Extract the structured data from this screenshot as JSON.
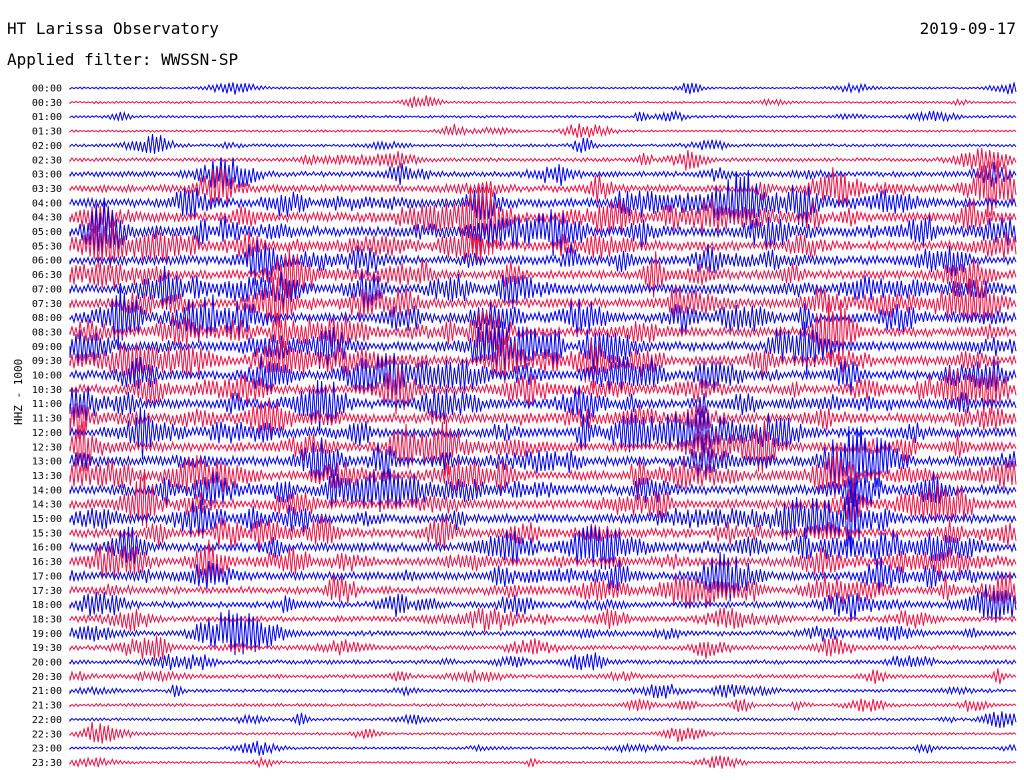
{
  "header": {
    "title": "HT Larissa Observatory",
    "date": "2019-09-17",
    "filter": "Applied filter: WWSSN-SP"
  },
  "channel_label": "HHZ - 1000",
  "colors": {
    "trace_a": "#0000ee",
    "trace_b": "#ee1144"
  },
  "chart_data": {
    "type": "line",
    "title": "HT Larissa Observatory",
    "ylabel": "HHZ - 1000",
    "categories": [
      "00:00",
      "00:30",
      "01:00",
      "01:30",
      "02:00",
      "02:30",
      "03:00",
      "03:30",
      "04:00",
      "04:30",
      "05:00",
      "05:30",
      "06:00",
      "06:30",
      "07:00",
      "07:30",
      "08:00",
      "08:30",
      "09:00",
      "09:30",
      "10:00",
      "10:30",
      "11:00",
      "11:30",
      "12:00",
      "12:30",
      "13:00",
      "13:30",
      "14:00",
      "14:30",
      "15:00",
      "15:30",
      "16:00",
      "16:30",
      "17:00",
      "17:30",
      "18:00",
      "18:30",
      "19:00",
      "19:30",
      "20:00",
      "20:30",
      "21:00",
      "21:30",
      "22:00",
      "22:30",
      "23:00",
      "23:30"
    ],
    "series": [
      {
        "activity": [
          0.1,
          0.12,
          0.15,
          0.12,
          0.2,
          0.3,
          0.5,
          0.7,
          0.9,
          1.0,
          1.0,
          0.95,
          0.9,
          0.9,
          0.95,
          0.95,
          0.95,
          0.95,
          0.95,
          0.95,
          0.95,
          0.95,
          0.95,
          0.95,
          0.95,
          0.95,
          0.95,
          0.95,
          0.95,
          0.9,
          0.9,
          0.9,
          0.9,
          0.85,
          0.8,
          0.7,
          0.6,
          0.5,
          0.45,
          0.4,
          0.35,
          0.3,
          0.25,
          0.22,
          0.2,
          0.15,
          0.15,
          0.12
        ]
      }
    ],
    "grid": false,
    "legend": "none"
  }
}
